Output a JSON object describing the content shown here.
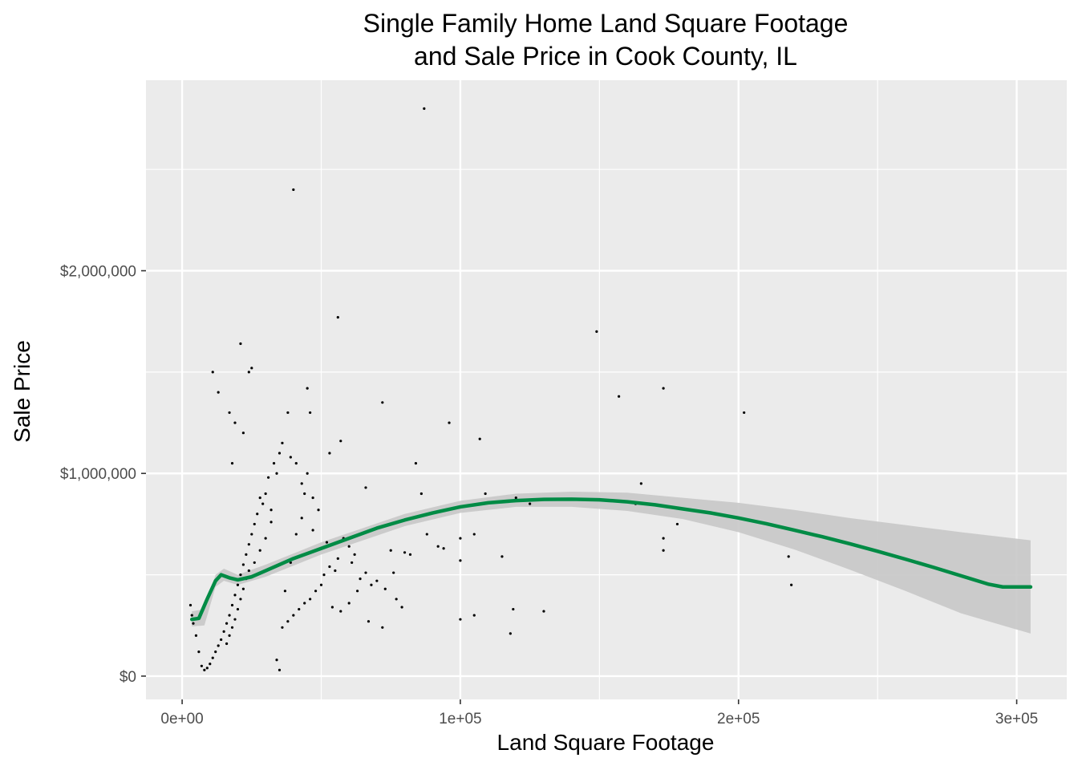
{
  "chart_data": {
    "type": "scatter",
    "title_lines": [
      "Single Family Home Land Square Footage",
      "and Sale Price in Cook County, IL"
    ],
    "xlabel": "Land Square Footage",
    "ylabel": "Sale Price",
    "xlim": [
      -13000,
      318000
    ],
    "ylim": [
      -115000,
      2940000
    ],
    "x_ticks": [
      {
        "value": 0,
        "label": "0e+00"
      },
      {
        "value": 100000,
        "label": "1e+05"
      },
      {
        "value": 200000,
        "label": "2e+05"
      },
      {
        "value": 300000,
        "label": "3e+05"
      }
    ],
    "y_ticks": [
      {
        "value": 0,
        "label": "$0"
      },
      {
        "value": 1000000,
        "label": "$1,000,000"
      },
      {
        "value": 2000000,
        "label": "$2,000,000"
      }
    ],
    "grid": true,
    "colors": {
      "panel": "#ebebeb",
      "grid": "#ffffff",
      "points": "#000000",
      "smooth": "#008b45",
      "band": "#c8c8c8"
    },
    "points": [
      [
        87000,
        2800000
      ],
      [
        40000,
        2400000
      ],
      [
        56000,
        1770000
      ],
      [
        21000,
        1640000
      ],
      [
        149000,
        1700000
      ],
      [
        25000,
        1520000
      ],
      [
        24000,
        1500000
      ],
      [
        11000,
        1500000
      ],
      [
        13000,
        1400000
      ],
      [
        45000,
        1420000
      ],
      [
        157000,
        1380000
      ],
      [
        173000,
        1420000
      ],
      [
        72000,
        1350000
      ],
      [
        202000,
        1300000
      ],
      [
        96000,
        1250000
      ],
      [
        107000,
        1170000
      ],
      [
        57000,
        1160000
      ],
      [
        53000,
        1100000
      ],
      [
        84000,
        1050000
      ],
      [
        165000,
        950000
      ],
      [
        109000,
        900000
      ],
      [
        120000,
        880000
      ],
      [
        66000,
        930000
      ],
      [
        86000,
        900000
      ],
      [
        125000,
        850000
      ],
      [
        163000,
        850000
      ],
      [
        178000,
        750000
      ],
      [
        100000,
        680000
      ],
      [
        105000,
        700000
      ],
      [
        173000,
        680000
      ],
      [
        173000,
        620000
      ],
      [
        94000,
        630000
      ],
      [
        100000,
        570000
      ],
      [
        115000,
        590000
      ],
      [
        218000,
        590000
      ],
      [
        219000,
        450000
      ],
      [
        119000,
        330000
      ],
      [
        130000,
        320000
      ],
      [
        105000,
        300000
      ],
      [
        100000,
        280000
      ],
      [
        118000,
        210000
      ],
      [
        75000,
        620000
      ],
      [
        80000,
        610000
      ],
      [
        76000,
        510000
      ],
      [
        73000,
        430000
      ],
      [
        77000,
        380000
      ],
      [
        79000,
        340000
      ],
      [
        67000,
        270000
      ],
      [
        72000,
        240000
      ],
      [
        66000,
        510000
      ],
      [
        62000,
        600000
      ],
      [
        60000,
        640000
      ],
      [
        58000,
        680000
      ],
      [
        55000,
        520000
      ],
      [
        53000,
        540000
      ],
      [
        51000,
        500000
      ],
      [
        50000,
        450000
      ],
      [
        48000,
        420000
      ],
      [
        46000,
        380000
      ],
      [
        44000,
        360000
      ],
      [
        42000,
        330000
      ],
      [
        40000,
        300000
      ],
      [
        38000,
        270000
      ],
      [
        36000,
        240000
      ],
      [
        34000,
        80000
      ],
      [
        35000,
        30000
      ],
      [
        37000,
        420000
      ],
      [
        39000,
        560000
      ],
      [
        41000,
        700000
      ],
      [
        43000,
        780000
      ],
      [
        44000,
        900000
      ],
      [
        45000,
        1000000
      ],
      [
        46000,
        1300000
      ],
      [
        38000,
        1300000
      ],
      [
        35000,
        1100000
      ],
      [
        33000,
        1050000
      ],
      [
        31000,
        980000
      ],
      [
        30000,
        900000
      ],
      [
        29000,
        850000
      ],
      [
        27000,
        800000
      ],
      [
        26000,
        750000
      ],
      [
        25000,
        700000
      ],
      [
        24000,
        650000
      ],
      [
        23000,
        600000
      ],
      [
        22000,
        550000
      ],
      [
        21000,
        500000
      ],
      [
        20000,
        450000
      ],
      [
        19000,
        400000
      ],
      [
        18000,
        350000
      ],
      [
        17000,
        300000
      ],
      [
        16000,
        260000
      ],
      [
        15000,
        220000
      ],
      [
        14000,
        180000
      ],
      [
        13000,
        150000
      ],
      [
        12000,
        120000
      ],
      [
        11000,
        90000
      ],
      [
        10000,
        60000
      ],
      [
        9000,
        40000
      ],
      [
        8000,
        30000
      ],
      [
        7000,
        50000
      ],
      [
        6000,
        120000
      ],
      [
        5000,
        200000
      ],
      [
        4000,
        260000
      ],
      [
        3500,
        300000
      ],
      [
        3000,
        350000
      ],
      [
        19000,
        1250000
      ],
      [
        22000,
        1200000
      ],
      [
        17000,
        1300000
      ],
      [
        18000,
        1050000
      ],
      [
        28000,
        880000
      ],
      [
        32000,
        820000
      ],
      [
        47000,
        720000
      ],
      [
        52000,
        660000
      ],
      [
        56000,
        580000
      ],
      [
        61000,
        560000
      ],
      [
        64000,
        480000
      ],
      [
        68000,
        450000
      ],
      [
        70000,
        470000
      ],
      [
        82000,
        600000
      ],
      [
        88000,
        700000
      ],
      [
        92000,
        640000
      ],
      [
        54000,
        340000
      ],
      [
        57000,
        320000
      ],
      [
        60000,
        360000
      ],
      [
        63000,
        420000
      ],
      [
        49000,
        820000
      ],
      [
        47000,
        880000
      ],
      [
        43000,
        950000
      ],
      [
        41000,
        1050000
      ],
      [
        39000,
        1080000
      ],
      [
        36000,
        1150000
      ],
      [
        34000,
        1000000
      ],
      [
        32000,
        760000
      ],
      [
        30000,
        680000
      ],
      [
        28000,
        620000
      ],
      [
        26000,
        560000
      ],
      [
        24000,
        520000
      ],
      [
        23000,
        480000
      ],
      [
        22000,
        430000
      ],
      [
        21000,
        380000
      ],
      [
        20000,
        330000
      ],
      [
        19000,
        280000
      ],
      [
        18000,
        240000
      ],
      [
        17000,
        200000
      ],
      [
        16000,
        160000
      ]
    ],
    "smooth_line": [
      [
        3500,
        280000
      ],
      [
        6000,
        285000
      ],
      [
        9000,
        380000
      ],
      [
        12000,
        470000
      ],
      [
        14000,
        500000
      ],
      [
        17000,
        485000
      ],
      [
        20000,
        475000
      ],
      [
        25000,
        490000
      ],
      [
        30000,
        520000
      ],
      [
        40000,
        580000
      ],
      [
        50000,
        630000
      ],
      [
        60000,
        680000
      ],
      [
        70000,
        730000
      ],
      [
        80000,
        770000
      ],
      [
        90000,
        805000
      ],
      [
        100000,
        835000
      ],
      [
        110000,
        855000
      ],
      [
        120000,
        866000
      ],
      [
        130000,
        872000
      ],
      [
        140000,
        873000
      ],
      [
        150000,
        870000
      ],
      [
        160000,
        860000
      ],
      [
        170000,
        845000
      ],
      [
        180000,
        825000
      ],
      [
        190000,
        805000
      ],
      [
        200000,
        780000
      ],
      [
        210000,
        752000
      ],
      [
        220000,
        720000
      ],
      [
        230000,
        688000
      ],
      [
        240000,
        653000
      ],
      [
        250000,
        616000
      ],
      [
        260000,
        577000
      ],
      [
        270000,
        537000
      ],
      [
        280000,
        495000
      ],
      [
        290000,
        453000
      ],
      [
        295000,
        440000
      ],
      [
        305000,
        440000
      ]
    ],
    "band_upper": [
      [
        3500,
        320000
      ],
      [
        8000,
        330000
      ],
      [
        12000,
        500000
      ],
      [
        15000,
        530000
      ],
      [
        20000,
        500000
      ],
      [
        30000,
        550000
      ],
      [
        50000,
        660000
      ],
      [
        80000,
        800000
      ],
      [
        100000,
        865000
      ],
      [
        120000,
        900000
      ],
      [
        140000,
        910000
      ],
      [
        160000,
        905000
      ],
      [
        180000,
        880000
      ],
      [
        200000,
        855000
      ],
      [
        220000,
        820000
      ],
      [
        240000,
        780000
      ],
      [
        260000,
        745000
      ],
      [
        280000,
        710000
      ],
      [
        305000,
        670000
      ]
    ],
    "band_lower": [
      [
        3500,
        245000
      ],
      [
        8000,
        250000
      ],
      [
        12000,
        440000
      ],
      [
        15000,
        470000
      ],
      [
        20000,
        450000
      ],
      [
        30000,
        490000
      ],
      [
        50000,
        600000
      ],
      [
        80000,
        740000
      ],
      [
        100000,
        805000
      ],
      [
        120000,
        835000
      ],
      [
        140000,
        835000
      ],
      [
        160000,
        815000
      ],
      [
        180000,
        775000
      ],
      [
        200000,
        710000
      ],
      [
        220000,
        625000
      ],
      [
        240000,
        525000
      ],
      [
        260000,
        420000
      ],
      [
        280000,
        310000
      ],
      [
        305000,
        210000
      ]
    ]
  }
}
